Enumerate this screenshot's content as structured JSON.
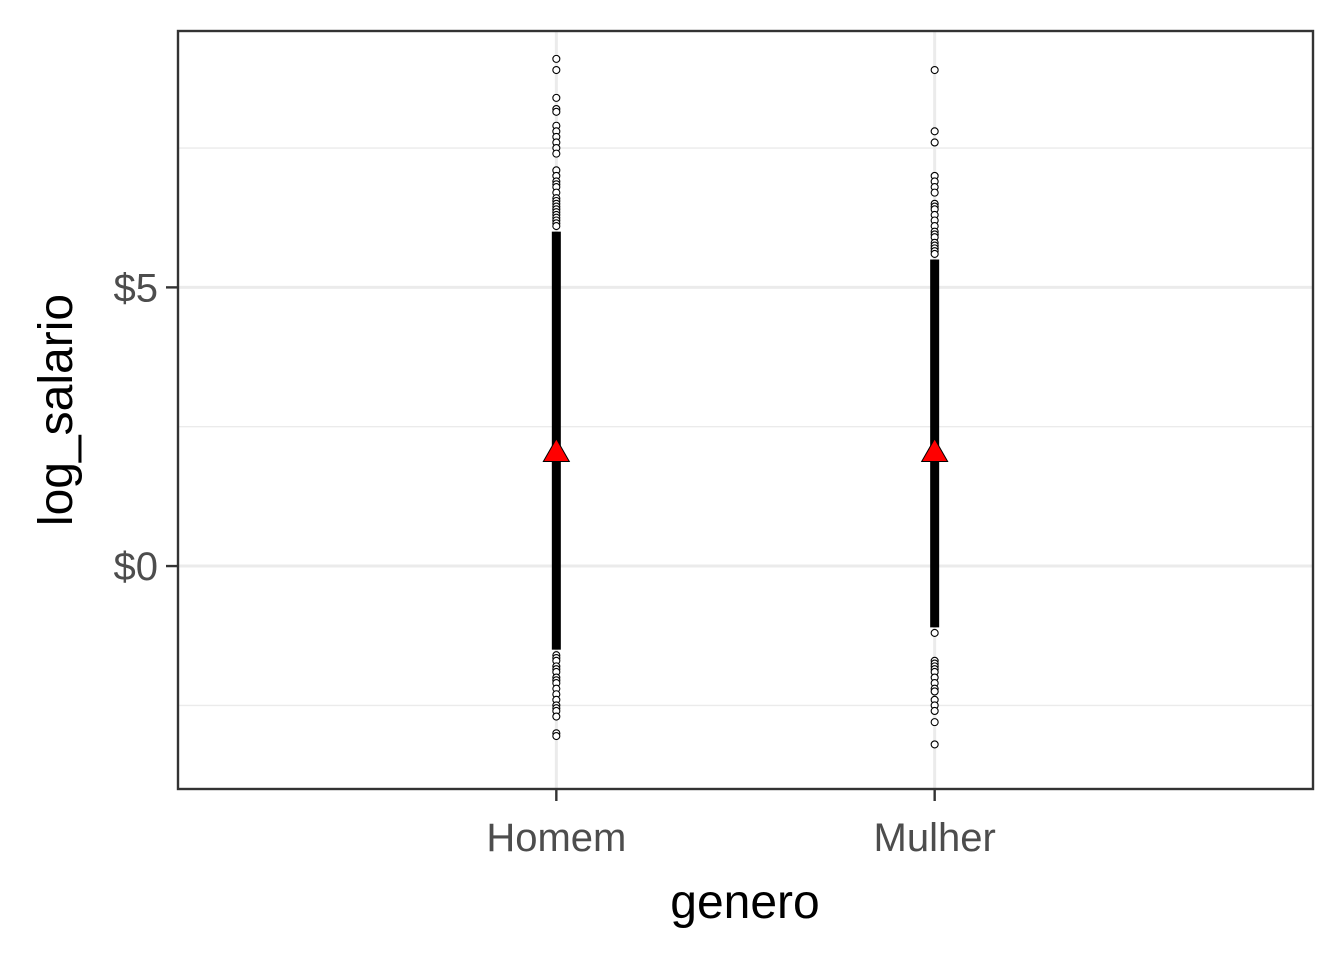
{
  "chart_data": {
    "type": "scatter",
    "title": "",
    "xlabel": "genero",
    "ylabel": "log_salario",
    "categories": [
      "Homem",
      "Mulher"
    ],
    "ylim": [
      -4,
      9.6
    ],
    "y_ticks": [
      0,
      5
    ],
    "y_tick_labels": [
      "$0",
      "$5"
    ],
    "grid": true,
    "legend": "none",
    "point_color": "#000000",
    "mean_marker_color": "#ff0000",
    "groups": [
      {
        "category": "Homem",
        "mean": 2.05,
        "dense_range": [
          -1.5,
          6.0
        ],
        "outliers": [
          9.1,
          8.9,
          8.4,
          8.2,
          8.15,
          7.9,
          7.8,
          7.7,
          7.6,
          7.5,
          7.4,
          7.1,
          7.0,
          6.9,
          6.85,
          6.8,
          6.7,
          6.6,
          6.55,
          6.5,
          6.45,
          6.4,
          6.35,
          6.3,
          6.25,
          6.2,
          6.15,
          6.1,
          -1.6,
          -1.65,
          -1.7,
          -1.8,
          -1.85,
          -1.9,
          -2.0,
          -2.05,
          -2.1,
          -2.2,
          -2.3,
          -2.4,
          -2.5,
          -2.55,
          -2.6,
          -2.7,
          -3.0,
          -3.05
        ]
      },
      {
        "category": "Mulher",
        "mean": 2.05,
        "dense_range": [
          -1.1,
          5.5
        ],
        "outliers": [
          8.9,
          7.8,
          7.6,
          7.0,
          6.9,
          6.8,
          6.7,
          6.5,
          6.45,
          6.4,
          6.3,
          6.2,
          6.1,
          6.0,
          5.95,
          5.9,
          5.8,
          5.75,
          5.7,
          5.65,
          5.6,
          -1.2,
          -1.7,
          -1.75,
          -1.8,
          -1.85,
          -1.9,
          -2.0,
          -2.1,
          -2.2,
          -2.25,
          -2.4,
          -2.5,
          -2.6,
          -2.8,
          -3.2
        ]
      }
    ]
  }
}
